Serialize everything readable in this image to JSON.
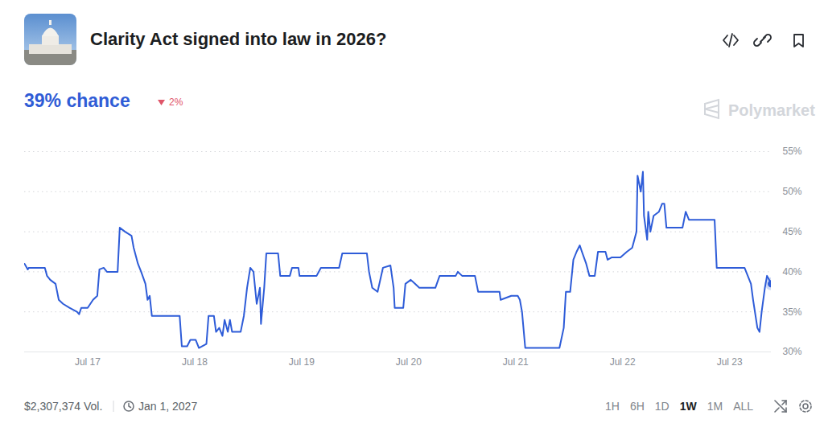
{
  "header": {
    "title": "Clarity Act signed into law in 2026?",
    "chance": "39% chance",
    "change": "2%",
    "brand": "Polymarket"
  },
  "chart_data": {
    "type": "line",
    "x": [
      16.41,
      16.44,
      16.45,
      16.6,
      16.62,
      16.65,
      16.7,
      16.73,
      16.77,
      16.83,
      16.9,
      16.92,
      16.94,
      17.0,
      17.05,
      17.09,
      17.11,
      17.15,
      17.18,
      17.28,
      17.3,
      17.35,
      17.41,
      17.43,
      17.47,
      17.5,
      17.54,
      17.56,
      17.58,
      17.6,
      17.86,
      17.88,
      17.93,
      17.96,
      18.01,
      18.04,
      18.11,
      18.13,
      18.18,
      18.2,
      18.23,
      18.26,
      18.28,
      18.31,
      18.33,
      18.35,
      18.43,
      18.46,
      18.49,
      18.52,
      18.55,
      18.58,
      18.61,
      18.62,
      18.65,
      18.67,
      18.78,
      18.8,
      18.89,
      18.91,
      18.97,
      18.98,
      19.14,
      19.18,
      19.35,
      19.38,
      19.61,
      19.63,
      19.66,
      19.71,
      19.76,
      19.83,
      19.86,
      19.87,
      19.95,
      19.97,
      20.02,
      20.06,
      20.1,
      20.25,
      20.29,
      20.44,
      20.46,
      20.5,
      20.62,
      20.65,
      20.85,
      20.86,
      20.96,
      21.02,
      21.04,
      21.06,
      21.09,
      21.41,
      21.45,
      21.47,
      21.51,
      21.54,
      21.57,
      21.6,
      21.62,
      21.66,
      21.69,
      21.74,
      21.77,
      21.84,
      21.86,
      21.9,
      21.98,
      22.04,
      22.09,
      22.13,
      22.14,
      22.17,
      22.19,
      22.2,
      22.23,
      22.24,
      22.26,
      22.29,
      22.34,
      22.37,
      22.39,
      22.41,
      22.56,
      22.59,
      22.62,
      22.86,
      22.88,
      23.14,
      23.17,
      23.2,
      23.22,
      23.26,
      23.28,
      23.3,
      23.33,
      23.35,
      23.39
    ],
    "values": [
      41,
      40.3,
      40.5,
      40.5,
      39.5,
      39,
      38.5,
      36.5,
      36,
      35.5,
      35,
      34.7,
      35.5,
      35.5,
      36.5,
      37,
      40.3,
      40.5,
      40,
      40,
      45.5,
      45,
      44.5,
      43,
      41,
      40,
      38.5,
      36.5,
      37,
      34.5,
      34.5,
      30.7,
      30.7,
      31.5,
      31.5,
      30.5,
      31,
      34.5,
      34.5,
      32.5,
      33,
      32,
      34,
      32.5,
      34,
      32.5,
      32.5,
      34.5,
      38,
      40.5,
      40,
      36,
      38,
      33.5,
      38,
      42.3,
      42.3,
      39.5,
      39.5,
      40.5,
      40.5,
      39.5,
      39.5,
      40.5,
      40.5,
      42.3,
      42.3,
      40,
      38,
      37.5,
      40.5,
      40.8,
      38,
      35.5,
      35.5,
      38.5,
      39,
      38.5,
      38,
      38,
      39.5,
      39.5,
      40,
      39.5,
      39.5,
      37.5,
      37.5,
      36.5,
      37,
      37,
      36.5,
      35,
      30.5,
      30.5,
      33,
      37.5,
      37.5,
      41.5,
      42.5,
      43.3,
      42.5,
      41,
      39.5,
      39.5,
      42.5,
      42.5,
      41.5,
      41.8,
      41.8,
      42.5,
      43,
      45,
      52,
      50,
      52.5,
      47,
      44,
      47.5,
      45,
      47,
      47.5,
      48.5,
      48.5,
      45.5,
      45.5,
      47.5,
      46.5,
      46.5,
      40.5,
      40.5,
      39.5,
      38.5,
      36.5,
      33,
      32.5,
      35,
      38,
      39.5,
      38.5
    ],
    "color": "#2e5cd8",
    "xlim": [
      16.41,
      23.39
    ],
    "xticks": [
      {
        "value": 17,
        "label": "Jul 17"
      },
      {
        "value": 18,
        "label": "Jul 18"
      },
      {
        "value": 19,
        "label": "Jul 19"
      },
      {
        "value": 20,
        "label": "Jul 20"
      },
      {
        "value": 21,
        "label": "Jul 21"
      },
      {
        "value": 22,
        "label": "Jul 22"
      },
      {
        "value": 23,
        "label": "Jul 23"
      }
    ],
    "ylim": [
      30,
      55
    ],
    "yticks": [
      {
        "value": 30,
        "label": "30%"
      },
      {
        "value": 35,
        "label": "35%"
      },
      {
        "value": 40,
        "label": "40%"
      },
      {
        "value": 45,
        "label": "45%"
      },
      {
        "value": 50,
        "label": "50%"
      },
      {
        "value": 55,
        "label": "55%"
      }
    ],
    "grid": true,
    "marker": "end"
  },
  "footer": {
    "volume": "$2,307,374 Vol.",
    "end_date": "Jan 1, 2027",
    "ranges": [
      "1H",
      "6H",
      "1D",
      "1W",
      "1M",
      "ALL"
    ],
    "selected": "1W"
  }
}
